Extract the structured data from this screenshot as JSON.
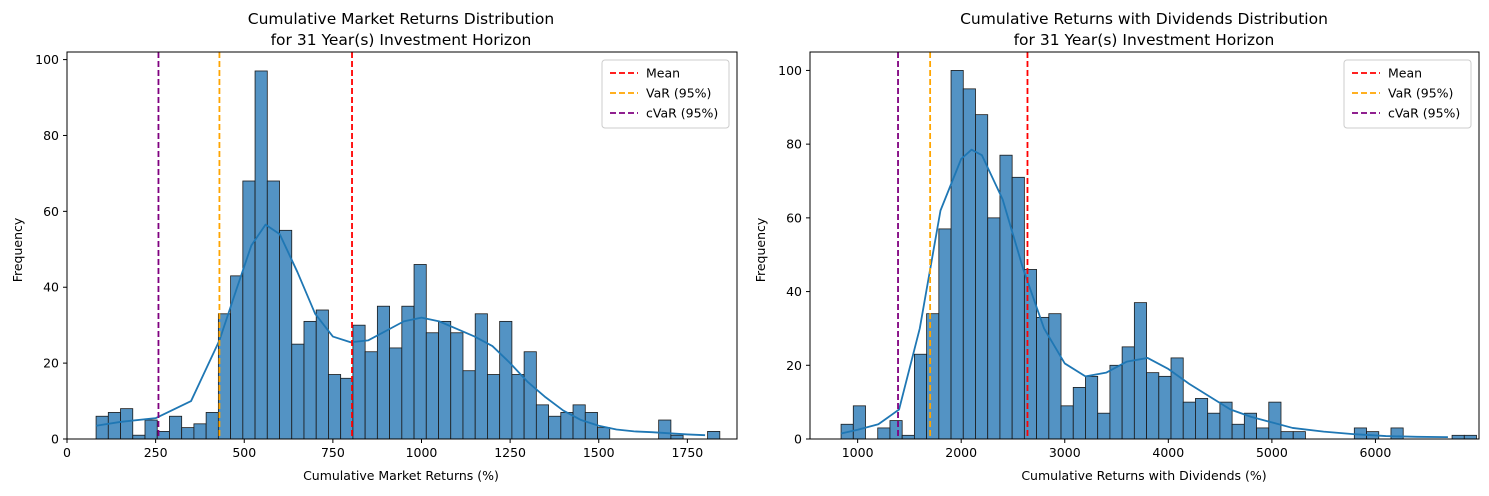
{
  "chart_data": [
    {
      "type": "bar",
      "title": "Cumulative Market Returns Distribution",
      "subtitle": "for 31 Year(s) Investment Horizon",
      "xlabel": "Cumulative Market Returns (%)",
      "ylabel": "Frequency",
      "xlim": [
        0,
        1890
      ],
      "ylim": [
        0,
        102
      ],
      "xticks": [
        0,
        250,
        500,
        750,
        1000,
        1250,
        1500,
        1750
      ],
      "yticks": [
        0,
        20,
        40,
        60,
        80,
        100
      ],
      "legend_position": "top-right",
      "bar_color": "#4c8fc2",
      "bin_start": 82,
      "bin_width": 34.5,
      "bin_counts": [
        6,
        7,
        8,
        1,
        5,
        2,
        6,
        3,
        4,
        7,
        33,
        43,
        68,
        97,
        68,
        55,
        25,
        31,
        34,
        17,
        16,
        30,
        23,
        35,
        24,
        35,
        46,
        28,
        31,
        28,
        18,
        33,
        17,
        31,
        17,
        23,
        9,
        6,
        7,
        9,
        7,
        3,
        0,
        0,
        0,
        0,
        5,
        1,
        0,
        0,
        2
      ],
      "kde_curve": {
        "x": [
          82,
          150,
          250,
          350,
          430,
          480,
          520,
          560,
          600,
          650,
          700,
          750,
          800,
          850,
          900,
          950,
          1000,
          1050,
          1100,
          1150,
          1200,
          1250,
          1300,
          1350,
          1400,
          1450,
          1500,
          1550,
          1600,
          1650,
          1700,
          1750,
          1800
        ],
        "y": [
          3.5,
          4.5,
          5.5,
          10,
          26,
          40,
          51,
          56.5,
          54,
          44,
          33,
          27,
          25.5,
          26,
          28.5,
          31,
          32,
          31,
          29,
          27,
          24.5,
          20,
          15,
          11,
          7.5,
          5,
          3.5,
          2.5,
          2,
          1.8,
          1.5,
          1.2,
          1
        ],
        "color": "#1f77b4"
      },
      "lines": [
        {
          "name": "Mean",
          "x": 804,
          "color": "#ff0000"
        },
        {
          "name": "VaR (95%)",
          "x": 430,
          "color": "#ffa500"
        },
        {
          "name": "cVaR (95%)",
          "x": 258,
          "color": "#800080"
        }
      ]
    },
    {
      "type": "bar",
      "title": "Cumulative Returns with Dividends Distribution",
      "subtitle": "for 31 Year(s) Investment Horizon",
      "xlabel": "Cumulative Returns with Dividends (%)",
      "ylabel": "Frequency",
      "xlim": [
        540,
        7000
      ],
      "ylim": [
        0,
        105
      ],
      "xticks": [
        1000,
        2000,
        3000,
        4000,
        5000,
        6000
      ],
      "yticks": [
        0,
        20,
        40,
        60,
        80,
        100
      ],
      "legend_position": "top-right",
      "bar_color": "#4c8fc2",
      "bin_start": 840,
      "bin_width": 118,
      "bin_counts": [
        4,
        9,
        0,
        3,
        5,
        1,
        23,
        34,
        57,
        100,
        95,
        88,
        60,
        77,
        71,
        46,
        33,
        34,
        9,
        14,
        17,
        7,
        20,
        25,
        37,
        18,
        17,
        22,
        10,
        11,
        7,
        10,
        4,
        7,
        3,
        10,
        2,
        2,
        0,
        0,
        0,
        0,
        3,
        2,
        0,
        3,
        0,
        0,
        0,
        0,
        1,
        1
      ],
      "kde_curve": {
        "x": [
          840,
          1000,
          1200,
          1400,
          1600,
          1800,
          2000,
          2100,
          2200,
          2400,
          2600,
          2800,
          3000,
          3200,
          3400,
          3600,
          3800,
          4000,
          4200,
          4400,
          4600,
          4800,
          5000,
          5200,
          5500,
          5800,
          6100,
          6400,
          6700
        ],
        "y": [
          1.5,
          2.5,
          4,
          8,
          30,
          62,
          76,
          78.5,
          77,
          65,
          46,
          30,
          20.5,
          17,
          18,
          21,
          22,
          19,
          15,
          11.5,
          8,
          6,
          4.5,
          3,
          2,
          1.3,
          0.8,
          0.6,
          0.5
        ],
        "color": "#1f77b4"
      },
      "lines": [
        {
          "name": "Mean",
          "x": 2640,
          "color": "#ff0000"
        },
        {
          "name": "VaR (95%)",
          "x": 1700,
          "color": "#ffa500"
        },
        {
          "name": "cVaR (95%)",
          "x": 1390,
          "color": "#800080"
        }
      ]
    }
  ]
}
